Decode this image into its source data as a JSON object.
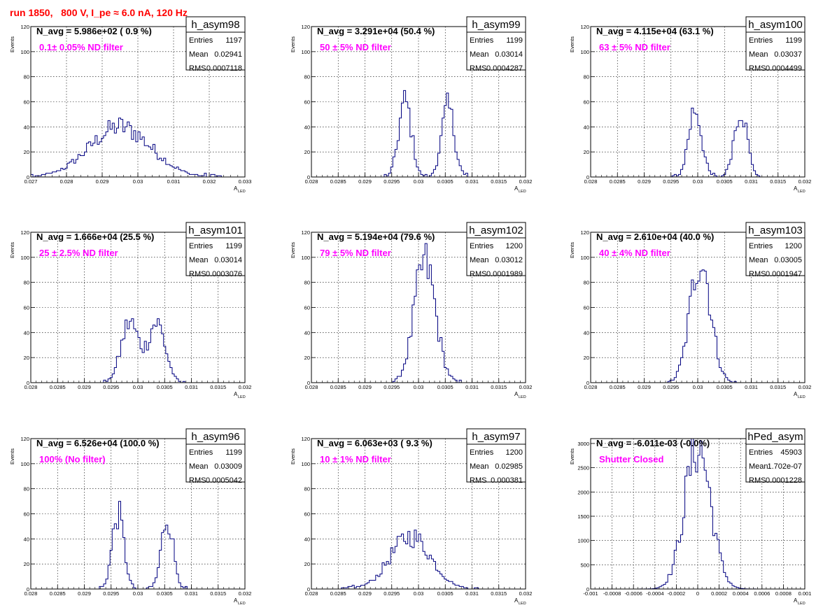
{
  "run_title": "run 1850,   800 V, I_pe ≈ 6.0 nA, 120 Hz",
  "colors": {
    "histogram": "#000080",
    "annotation": "#ff00ff",
    "title": "#ff0000",
    "grid": "#000000"
  },
  "chart_data": [
    {
      "type": "bar",
      "name": "h_asym98",
      "navg": "N_avg = 5.986e+02 ( 0.9 %)",
      "note": "0.1± 0.05% ND filter",
      "stats": {
        "entries": "1197",
        "mean": "0.02941",
        "rms": "0.0007118"
      },
      "xlim": [
        0.027,
        0.033
      ],
      "ylim": [
        0,
        120
      ],
      "xticks": [
        "0.027",
        "0.028",
        "0.029",
        "0.03",
        "0.031",
        "0.032",
        "0.033"
      ],
      "yticks": [
        "0",
        "20",
        "40",
        "60",
        "80",
        "100",
        "120"
      ],
      "ylabel": "Events",
      "xlabel": "A",
      "xlabel_sub": "LED",
      "peaks": [
        [
          0.0295,
          0.00085,
          40
        ]
      ]
    },
    {
      "type": "bar",
      "name": "h_asym99",
      "navg": "N_avg = 3.291e+04 (50.4 %)",
      "note": "50 ± 5% ND filter",
      "stats": {
        "entries": "1199",
        "mean": "0.03014",
        "rms": "0.0004287"
      },
      "xlim": [
        0.028,
        0.032
      ],
      "ylim": [
        0,
        120
      ],
      "xticks": [
        "0.028",
        "0.0285",
        "0.029",
        "0.0295",
        "0.03",
        "0.0305",
        "0.031",
        "0.0315",
        "0.032"
      ],
      "yticks": [
        "0",
        "20",
        "40",
        "60",
        "80",
        "100",
        "120"
      ],
      "ylabel": "Events",
      "xlabel": "A",
      "xlabel_sub": "LED",
      "peaks": [
        [
          0.02975,
          0.00012,
          60
        ],
        [
          0.03055,
          0.00012,
          55
        ]
      ]
    },
    {
      "type": "bar",
      "name": "h_asym100",
      "navg": "N_avg = 4.115e+04 (63.1 %)",
      "note": "63 ± 5% ND filter",
      "stats": {
        "entries": "1199",
        "mean": "0.03037",
        "rms": "0.0004499"
      },
      "xlim": [
        0.028,
        0.032
      ],
      "ylim": [
        0,
        120
      ],
      "xticks": [
        "0.028",
        "0.0285",
        "0.029",
        "0.0295",
        "0.03",
        "0.0305",
        "0.031",
        "0.0315",
        "0.032"
      ],
      "yticks": [
        "0",
        "20",
        "40",
        "60",
        "80",
        "100",
        "120"
      ],
      "ylabel": "Events",
      "xlabel": "A",
      "xlabel_sub": "LED",
      "peaks": [
        [
          0.02995,
          0.00012,
          55
        ],
        [
          0.0308,
          0.00012,
          55
        ]
      ]
    },
    {
      "type": "bar",
      "name": "h_asym101",
      "navg": "N_avg = 1.666e+04 (25.5 %)",
      "note": "25 ± 2.5% ND filter",
      "stats": {
        "entries": "1199",
        "mean": "0.03014",
        "rms": "0.0003076"
      },
      "xlim": [
        0.028,
        0.032
      ],
      "ylim": [
        0,
        120
      ],
      "xticks": [
        "0.028",
        "0.0285",
        "0.029",
        "0.0295",
        "0.03",
        "0.0305",
        "0.031",
        "0.0315",
        "0.032"
      ],
      "yticks": [
        "0",
        "20",
        "40",
        "60",
        "80",
        "100",
        "120"
      ],
      "ylabel": "Events",
      "xlabel": "A",
      "xlabel_sub": "LED",
      "peaks": [
        [
          0.02985,
          0.00016,
          48
        ],
        [
          0.03035,
          0.00016,
          48
        ]
      ]
    },
    {
      "type": "bar",
      "name": "h_asym102",
      "navg": "N_avg = 5.194e+04 (79.6 %)",
      "note": "79 ± 5% ND filter",
      "stats": {
        "entries": "1200",
        "mean": "0.03012",
        "rms": "0.0001989"
      },
      "xlim": [
        0.028,
        0.032
      ],
      "ylim": [
        0,
        120
      ],
      "xticks": [
        "0.028",
        "0.0285",
        "0.029",
        "0.0295",
        "0.03",
        "0.0305",
        "0.031",
        "0.0315",
        "0.032"
      ],
      "yticks": [
        "0",
        "20",
        "40",
        "60",
        "80",
        "100",
        "120"
      ],
      "ylabel": "Events",
      "xlabel": "A",
      "xlabel_sub": "LED",
      "peaks": [
        [
          0.03012,
          0.0002,
          95
        ]
      ]
    },
    {
      "type": "bar",
      "name": "h_asym103",
      "navg": "N_avg = 2.610e+04 (40.0 %)",
      "note": "40 ± 4% ND filter",
      "stats": {
        "entries": "1200",
        "mean": "0.03005",
        "rms": "0.0001947"
      },
      "xlim": [
        0.028,
        0.032
      ],
      "ylim": [
        0,
        120
      ],
      "xticks": [
        "0.028",
        "0.0285",
        "0.029",
        "0.0295",
        "0.03",
        "0.0305",
        "0.031",
        "0.0315",
        "0.032"
      ],
      "yticks": [
        "0",
        "20",
        "40",
        "60",
        "80",
        "100",
        "120"
      ],
      "ylabel": "Events",
      "xlabel": "A",
      "xlabel_sub": "LED",
      "peaks": [
        [
          0.03005,
          0.00019,
          100
        ]
      ]
    },
    {
      "type": "bar",
      "name": "h_asym96",
      "navg": "N_avg = 6.526e+04 (100.0 %)",
      "note": "100% (No filter)",
      "stats": {
        "entries": "1199",
        "mean": "0.03009",
        "rms": "0.0005042"
      },
      "xlim": [
        0.028,
        0.032
      ],
      "ylim": [
        0,
        120
      ],
      "xticks": [
        "0.028",
        "0.0285",
        "0.029",
        "0.0295",
        "0.03",
        "0.0305",
        "0.031",
        "0.0315",
        "0.032"
      ],
      "yticks": [
        "0",
        "20",
        "40",
        "60",
        "80",
        "100",
        "120"
      ],
      "ylabel": "Events",
      "xlabel": "A",
      "xlabel_sub": "LED",
      "peaks": [
        [
          0.02963,
          0.00011,
          60
        ],
        [
          0.03055,
          0.00011,
          57
        ]
      ]
    },
    {
      "type": "bar",
      "name": "h_asym97",
      "navg": "N_avg = 6.063e+03 ( 9.3 %)",
      "note": "10 ± 1% ND filter",
      "stats": {
        "entries": "1200",
        "mean": "0.02985",
        "rms": "0.000381"
      },
      "xlim": [
        0.028,
        0.032
      ],
      "ylim": [
        0,
        120
      ],
      "xticks": [
        "0.028",
        "0.0285",
        "0.029",
        "0.0295",
        "0.03",
        "0.0305",
        "0.031",
        "0.0315",
        "0.032"
      ],
      "yticks": [
        "0",
        "20",
        "40",
        "60",
        "80",
        "100",
        "120"
      ],
      "ylabel": "Events",
      "xlabel": "A",
      "xlabel_sub": "LED",
      "peaks": [
        [
          0.02985,
          0.00038,
          42
        ]
      ]
    },
    {
      "type": "bar",
      "name": "hPed_asym",
      "navg": "N_avg = -6.011e-03 (-0.0%)",
      "note": "Shutter Closed",
      "stats": {
        "entries": "45903",
        "mean": "1.702e-07",
        "rms": "0.0001228"
      },
      "xlim": [
        -0.001,
        0.001
      ],
      "ylim": [
        0,
        3100
      ],
      "xticks": [
        "-0.001",
        "-0.0008",
        "-0.0006",
        "-0.0004",
        "-0.0002",
        "0",
        "0.0002",
        "0.0004",
        "0.0006",
        "0.0008",
        "0.001"
      ],
      "yticks": [
        "0",
        "500",
        "1000",
        "1500",
        "2000",
        "2500",
        "3000"
      ],
      "ylabel": "Events",
      "xlabel": "A",
      "xlabel_sub": "LED",
      "peaks": [
        [
          0.0,
          0.000122,
          2950
        ]
      ]
    }
  ]
}
